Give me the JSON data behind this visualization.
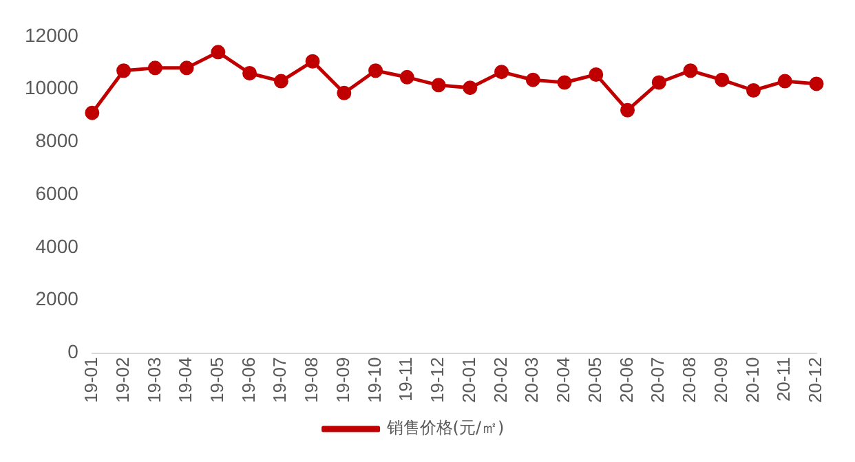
{
  "chart_data": {
    "type": "line",
    "categories": [
      "19-01",
      "19-02",
      "19-03",
      "19-04",
      "19-05",
      "19-06",
      "19-07",
      "19-08",
      "19-09",
      "19-10",
      "19-11",
      "19-12",
      "20-01",
      "20-02",
      "20-03",
      "20-04",
      "20-05",
      "20-06",
      "20-07",
      "20-08",
      "20-09",
      "20-10",
      "20-11",
      "20-12"
    ],
    "series": [
      {
        "name": "销售价格(元/㎡)",
        "color": "#c00000",
        "values": [
          9100,
          10700,
          10800,
          10800,
          11400,
          10600,
          10300,
          11050,
          9850,
          10700,
          10450,
          10150,
          10050,
          10650,
          10350,
          10250,
          10550,
          9200,
          10250,
          10700,
          10350,
          9950,
          10300,
          10200
        ]
      }
    ],
    "ylim": [
      0,
      12000
    ],
    "yticks": [
      0,
      2000,
      4000,
      6000,
      8000,
      10000,
      12000
    ],
    "grid": false,
    "legend": "bottom",
    "marker": "circle",
    "line_style": "solid"
  }
}
